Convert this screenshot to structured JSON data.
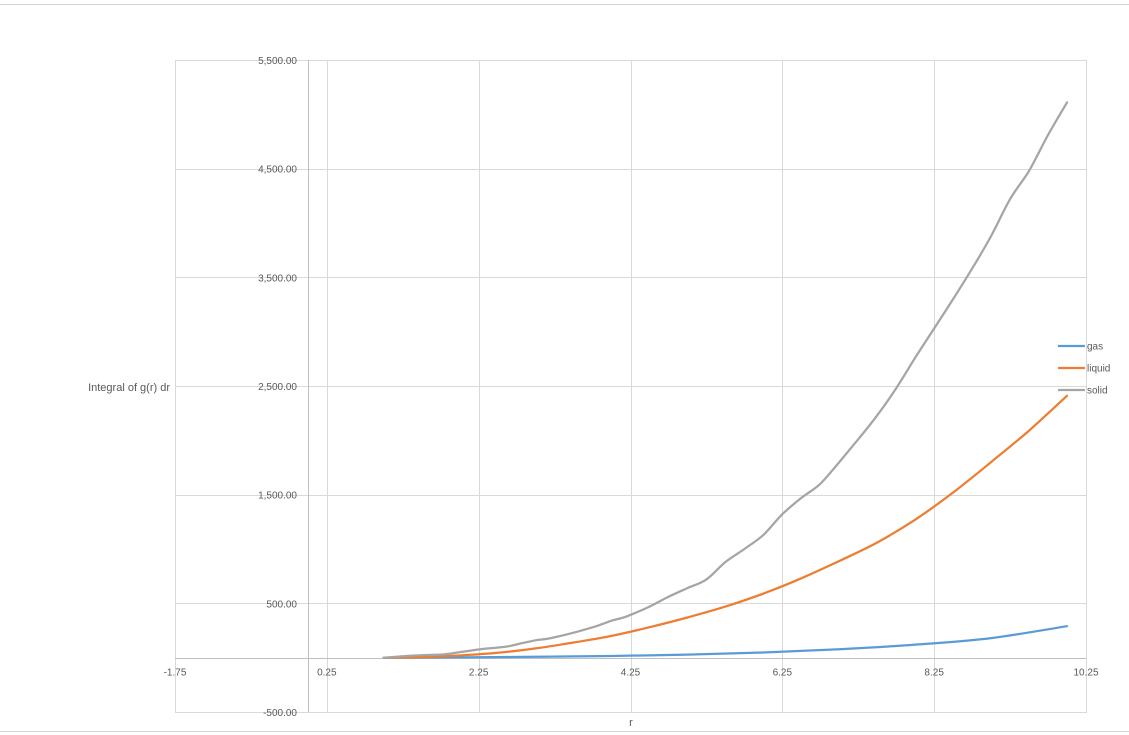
{
  "chart_data": {
    "type": "line",
    "title": "",
    "xlabel": "r",
    "ylabel": "Integral of g(r) dr",
    "xlim": [
      -1.75,
      10.25
    ],
    "ylim": [
      -500,
      5500
    ],
    "x_ticks": [
      -1.75,
      0.25,
      2.25,
      4.25,
      6.25,
      8.25,
      10.25
    ],
    "x_tick_labels": [
      "-1.75",
      "0.25",
      "2.25",
      "4.25",
      "6.25",
      "8.25",
      "10.25"
    ],
    "y_ticks": [
      -500,
      500,
      1500,
      2500,
      3500,
      4500,
      5500
    ],
    "y_tick_labels": [
      "-500.00",
      "500.00",
      "1,500.00",
      "2,500.00",
      "3,500.00",
      "4,500.00",
      "5,500.00"
    ],
    "grid": true,
    "legend_position": "right",
    "series": [
      {
        "name": "gas",
        "color": "#5B9BD5",
        "x": [
          1.0,
          2.0,
          3.0,
          4.0,
          5.0,
          6.0,
          7.0,
          8.0,
          9.0,
          10.0
        ],
        "y": [
          0,
          2,
          8,
          15,
          28,
          48,
          78,
          120,
          180,
          290
        ]
      },
      {
        "name": "liquid",
        "color": "#ED7D31",
        "x": [
          1.0,
          1.5,
          2.0,
          2.5,
          3.0,
          3.5,
          4.0,
          4.5,
          5.0,
          5.5,
          6.0,
          6.5,
          7.0,
          7.5,
          8.0,
          8.5,
          9.0,
          9.5,
          10.0
        ],
        "y": [
          0,
          5,
          20,
          45,
          85,
          140,
          200,
          280,
          370,
          470,
          590,
          730,
          890,
          1060,
          1270,
          1520,
          1800,
          2090,
          2410
        ]
      },
      {
        "name": "solid",
        "color": "#A5A5A5",
        "x": [
          1.0,
          1.3,
          1.6,
          1.8,
          2.0,
          2.3,
          2.6,
          2.8,
          3.0,
          3.2,
          3.5,
          3.8,
          4.0,
          4.2,
          4.5,
          4.75,
          5.0,
          5.25,
          5.5,
          5.75,
          6.0,
          6.25,
          6.5,
          6.75,
          7.0,
          7.25,
          7.5,
          7.75,
          8.0,
          8.25,
          8.5,
          8.75,
          9.0,
          9.25,
          9.5,
          9.75,
          10.0
        ],
        "y": [
          0,
          15,
          25,
          30,
          50,
          80,
          100,
          130,
          160,
          180,
          230,
          290,
          340,
          380,
          470,
          560,
          640,
          720,
          880,
          1000,
          1130,
          1320,
          1470,
          1600,
          1800,
          2010,
          2230,
          2480,
          2760,
          3030,
          3300,
          3580,
          3880,
          4220,
          4480,
          4810,
          5110
        ]
      }
    ]
  }
}
